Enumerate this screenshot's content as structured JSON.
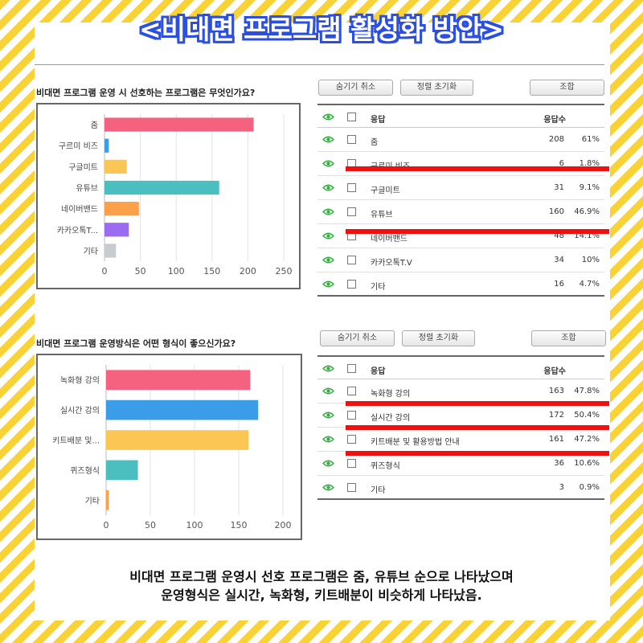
{
  "title": "<비대면 프로그램 활성화 방안>",
  "colors": {
    "accent": "#2b4fe0",
    "stripe": "#f9d336",
    "highlight": "#ee1111"
  },
  "toolbar": {
    "hide_cancel": "숨기기 취소",
    "sort_reset": "정렬 초기화",
    "combine": "조합"
  },
  "survey1": {
    "question": "비대면 프로그램 운영 시 선호하는 프로그램은 무엇인가요?",
    "table_header": {
      "response": "응답",
      "count": "응답수"
    },
    "rows": [
      {
        "label": "줌",
        "count": "208",
        "pct": "61%"
      },
      {
        "label": "구르미 비즈",
        "count": "6",
        "pct": "1.8%"
      },
      {
        "label": "구글미트",
        "count": "31",
        "pct": "9.1%"
      },
      {
        "label": "유튜브",
        "count": "160",
        "pct": "46.9%"
      },
      {
        "label": "네이버밴드",
        "count": "48",
        "pct": "14.1%"
      },
      {
        "label": "카카오톡T.V",
        "count": "34",
        "pct": "10%"
      },
      {
        "label": "기타",
        "count": "16",
        "pct": "4.7%"
      }
    ]
  },
  "survey2": {
    "question": "비대면 프로그램 운영방식은 어떤 형식이 좋으신가요?",
    "table_header": {
      "response": "응답",
      "count": "응답수"
    },
    "rows": [
      {
        "label": "녹화형 강의",
        "count": "163",
        "pct": "47.8%"
      },
      {
        "label": "실시간 강의",
        "count": "172",
        "pct": "50.4%"
      },
      {
        "label": "키트배분 및 활용방법 안내",
        "count": "161",
        "pct": "47.2%"
      },
      {
        "label": "퀴즈형식",
        "count": "36",
        "pct": "10.6%"
      },
      {
        "label": "기타",
        "count": "3",
        "pct": "0.9%"
      }
    ]
  },
  "summary": {
    "line1": "비대면 프로그램 운영시 선호 프로그램은 줌, 유튜브 순으로 나타났으며",
    "line2": "운영형식은 실시간, 녹화형, 키트배분이 비슷하게 나타났음."
  },
  "chart_data": [
    {
      "type": "bar",
      "orientation": "horizontal",
      "categories": [
        "줌",
        "구르미 비즈",
        "구글미트",
        "유튜브",
        "네이버밴드",
        "카카오톡T...",
        "기타"
      ],
      "values": [
        208,
        6,
        31,
        160,
        48,
        34,
        16
      ],
      "colors": [
        "#f4627f",
        "#3b9ce8",
        "#fcc654",
        "#4bbfc0",
        "#fca04a",
        "#9b6bf2",
        "#c8cbd0"
      ],
      "xlim": [
        0,
        250
      ],
      "xticks": [
        0,
        50,
        100,
        150,
        200,
        250
      ],
      "grid": true
    },
    {
      "type": "bar",
      "orientation": "horizontal",
      "categories": [
        "녹화형 강의",
        "실시간 강의",
        "키트배분 및...",
        "퀴즈형식",
        "기타"
      ],
      "values": [
        163,
        172,
        161,
        36,
        3
      ],
      "colors": [
        "#f4627f",
        "#3b9ce8",
        "#fcc654",
        "#4bbfc0",
        "#fca04a"
      ],
      "xlim": [
        0,
        200
      ],
      "xticks": [
        0,
        50,
        100,
        150,
        200
      ],
      "grid": true
    }
  ]
}
